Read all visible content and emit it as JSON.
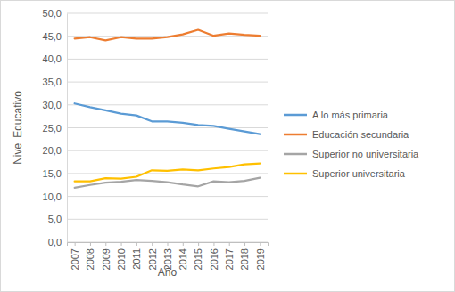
{
  "chart_data": {
    "type": "line",
    "x_label": "Año",
    "y_label": "Nivel Educativo",
    "categories": [
      "2007",
      "2008",
      "2009",
      "2010",
      "2011",
      "2012",
      "2013",
      "2014",
      "2015",
      "2016",
      "2017",
      "2018",
      "2019"
    ],
    "series": [
      {
        "name": "A lo más primaria",
        "color": "#5b9bd5",
        "values": [
          30.3,
          29.5,
          28.8,
          28.1,
          27.7,
          26.4,
          26.4,
          26.1,
          25.6,
          25.4,
          24.8,
          24.2,
          23.6
        ]
      },
      {
        "name": "Educación secundaria",
        "color": "#ed7d31",
        "values": [
          44.5,
          44.8,
          44.1,
          44.8,
          44.5,
          44.5,
          44.8,
          45.4,
          46.4,
          45.1,
          45.6,
          45.3,
          45.1
        ]
      },
      {
        "name": "Superior no universitaria",
        "color": "#a5a5a5",
        "values": [
          11.9,
          12.5,
          13.0,
          13.2,
          13.6,
          13.4,
          13.1,
          12.6,
          12.2,
          13.3,
          13.1,
          13.4,
          14.1
        ]
      },
      {
        "name": "Superior universitaria",
        "color": "#ffc000",
        "values": [
          13.3,
          13.3,
          14.0,
          13.9,
          14.3,
          15.7,
          15.6,
          15.9,
          15.7,
          16.1,
          16.4,
          17.0,
          17.2
        ]
      }
    ],
    "ylim": [
      0,
      50
    ],
    "yticks": [
      {
        "value": 0,
        "label": "0,0"
      },
      {
        "value": 5,
        "label": "5,0"
      },
      {
        "value": 10,
        "label": "10,0"
      },
      {
        "value": 15,
        "label": "15,0"
      },
      {
        "value": 20,
        "label": "20,0"
      },
      {
        "value": 25,
        "label": "25,0"
      },
      {
        "value": 30,
        "label": "30,0"
      },
      {
        "value": 35,
        "label": "35,0"
      },
      {
        "value": 40,
        "label": "40,0"
      },
      {
        "value": 45,
        "label": "45,0"
      },
      {
        "value": 50,
        "label": "50,0"
      }
    ],
    "grid": true,
    "legend": "right"
  }
}
